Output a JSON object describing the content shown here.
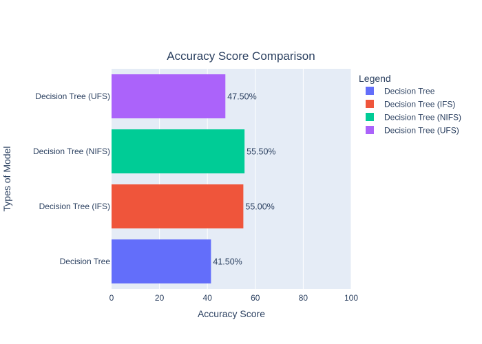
{
  "chart_data": {
    "type": "bar",
    "orientation": "horizontal",
    "title": "Accuracy Score Comparison",
    "xlabel": "Accuracy Score",
    "ylabel": "Types of Model",
    "xlim": [
      0,
      100
    ],
    "x_ticks": [
      0,
      20,
      40,
      60,
      80,
      100
    ],
    "grid": true,
    "legend_title": "Legend",
    "legend_position": "top-right",
    "categories": [
      "Decision Tree",
      "Decision Tree (IFS)",
      "Decision Tree (NIFS)",
      "Decision Tree (UFS)"
    ],
    "series": [
      {
        "name": "Decision Tree",
        "category": "Decision Tree",
        "value": 41.5,
        "label": "41.50%",
        "color": "#636efa"
      },
      {
        "name": "Decision Tree (IFS)",
        "category": "Decision Tree (IFS)",
        "value": 55.0,
        "label": "55.00%",
        "color": "#ef553b"
      },
      {
        "name": "Decision Tree (NIFS)",
        "category": "Decision Tree (NIFS)",
        "value": 55.5,
        "label": "55.50%",
        "color": "#00cc96"
      },
      {
        "name": "Decision Tree (UFS)",
        "category": "Decision Tree (UFS)",
        "value": 47.5,
        "label": "47.50%",
        "color": "#ab63fa"
      }
    ]
  }
}
